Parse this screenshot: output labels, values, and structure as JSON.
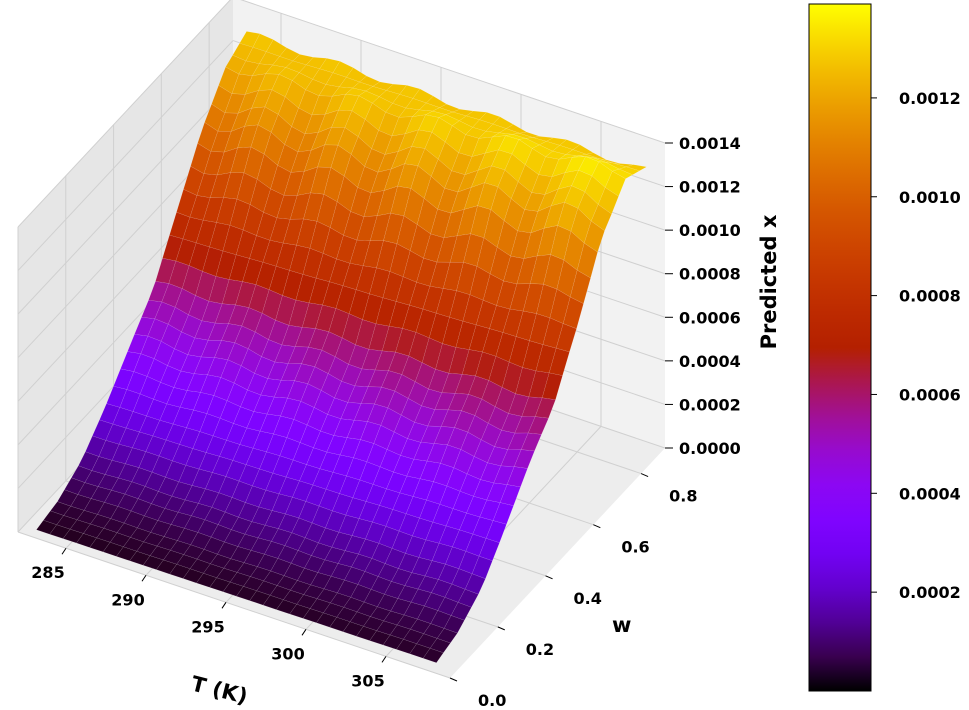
{
  "chart_data": {
    "type": "surface3d",
    "title": "",
    "xlabel": "T (K)",
    "ylabel": "w",
    "zlabel": "Predicted x",
    "x_range": [
      282,
      309
    ],
    "y_range": [
      0.0,
      0.9
    ],
    "zlim": [
      0.0,
      0.0014
    ],
    "x_ticks": [
      "285",
      "290",
      "295",
      "300",
      "305"
    ],
    "x_tick_values": [
      285,
      290,
      295,
      300,
      305
    ],
    "y_ticks": [
      "0.0",
      "0.2",
      "0.4",
      "0.6",
      "0.8"
    ],
    "y_tick_values": [
      0.0,
      0.2,
      0.4,
      0.6,
      0.8
    ],
    "z_ticks": [
      "0.0000",
      "0.0002",
      "0.0004",
      "0.0006",
      "0.0008",
      "0.0010",
      "0.0012",
      "0.0014"
    ],
    "z_tick_values": [
      0.0,
      0.0002,
      0.0004,
      0.0006,
      0.0008,
      0.001,
      0.0012,
      0.0014
    ],
    "colormap": "gnuplot",
    "colorbar": {
      "range": [
        0.0,
        0.00139
      ],
      "ticks": [
        "0.0002",
        "0.0004",
        "0.0006",
        "0.0008",
        "0.0010",
        "0.0012"
      ],
      "tick_values": [
        0.0002,
        0.0004,
        0.0006,
        0.0008,
        0.001,
        0.0012
      ],
      "placement": "right"
    },
    "surface_profile": {
      "description_x": "T (K)",
      "w": [
        0.0,
        0.1,
        0.2,
        0.3,
        0.4,
        0.5,
        0.6,
        0.7,
        0.8,
        0.9
      ],
      "x_at_T_min": [
        2e-05,
        5e-05,
        0.00012,
        0.00025,
        0.0004,
        0.00055,
        0.0008,
        0.00105,
        0.00122,
        0.00128
      ],
      "x_at_T_max": [
        3e-05,
        7e-05,
        0.00016,
        0.00032,
        0.00048,
        0.00062,
        0.0009,
        0.00122,
        0.00136,
        0.00125
      ]
    },
    "grid": true
  }
}
